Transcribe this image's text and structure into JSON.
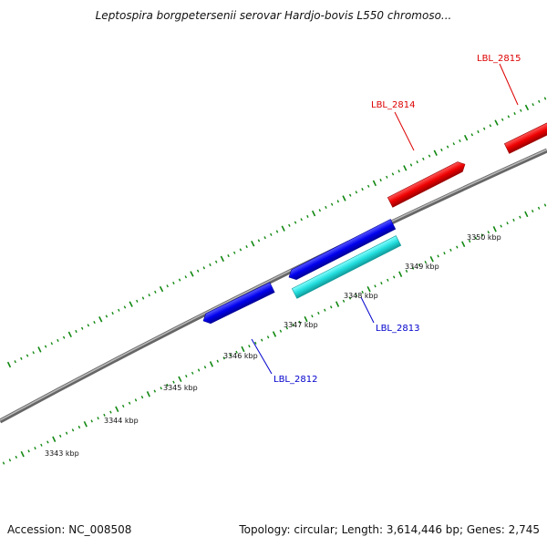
{
  "title": "Leptospira borgpetersenii serovar Hardjo-bovis L550 chromoso...",
  "footer": {
    "accession": "Accession: NC_008508",
    "summary": "Topology: circular; Length: 3,614,446 bp; Genes: 2,745"
  },
  "scale_labels": [
    "3343 kbp",
    "3344 kbp",
    "3345 kbp",
    "3346 kbp",
    "3347 kbp",
    "3348 kbp",
    "3349 kbp",
    "3350 kbp"
  ],
  "genes": [
    {
      "label": "LBL_2812",
      "strand": "reverse",
      "color": "#0000ee"
    },
    {
      "label": "LBL_2813",
      "strand": "reverse",
      "color": "#0000ee"
    },
    {
      "label": "LBL_2814",
      "strand": "forward",
      "color": "#ee0000"
    },
    {
      "label": "LBL_2815",
      "strand": "forward",
      "color": "#ee0000"
    }
  ],
  "colors": {
    "backbone": "#888888",
    "ticks": "#118811",
    "forward_feature": "#ee0000",
    "reverse_feature": "#0000ee",
    "highlight_feature": "#22dddd",
    "forward_label": "#dd0000",
    "reverse_label": "#0000cc"
  }
}
